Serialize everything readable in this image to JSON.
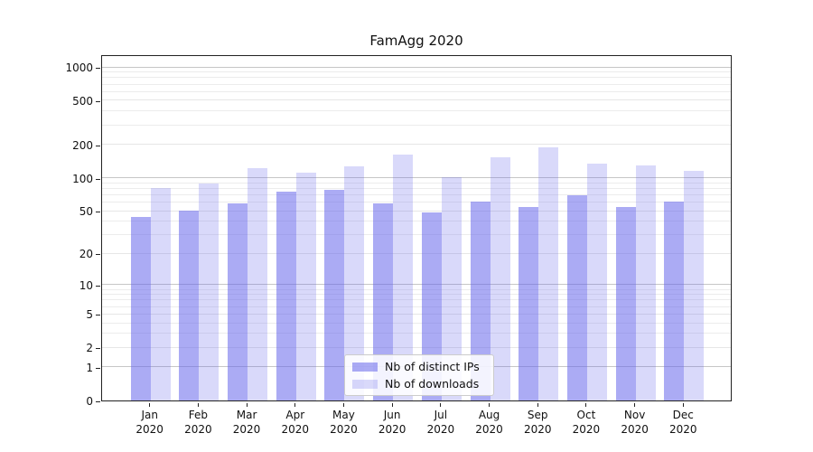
{
  "chart_data": {
    "type": "bar",
    "title": "FamAgg 2020",
    "categories": [
      "Jan 2020",
      "Feb 2020",
      "Mar 2020",
      "Apr 2020",
      "May 2020",
      "Jun 2020",
      "Jul 2020",
      "Aug 2020",
      "Sep 2020",
      "Oct 2020",
      "Nov 2020",
      "Dec 2020"
    ],
    "series": [
      {
        "name": "Nb of distinct IPs",
        "color": "rgba(102,102,235,0.55)",
        "color_hex": "#a9a9f3",
        "values": [
          44,
          50,
          58,
          75,
          77,
          58,
          48,
          61,
          54,
          69,
          54,
          61
        ]
      },
      {
        "name": "Nb of downloads",
        "color": "rgba(102,102,235,0.25)",
        "color_hex": "#d9d9f7",
        "values": [
          81,
          89,
          122,
          112,
          127,
          162,
          101,
          153,
          189,
          135,
          128,
          116
        ]
      }
    ],
    "yscale": "log10(value+1)",
    "ylim": [
      0,
      1100
    ],
    "y_ticks": [
      0,
      1,
      2,
      5,
      10,
      20,
      50,
      100,
      200,
      500,
      1000
    ],
    "y_minor_ticks": [
      3,
      4,
      6,
      7,
      8,
      9,
      30,
      40,
      60,
      70,
      80,
      90,
      300,
      400,
      600,
      700,
      800,
      900
    ],
    "grid": true,
    "legend_position": "lower center"
  }
}
